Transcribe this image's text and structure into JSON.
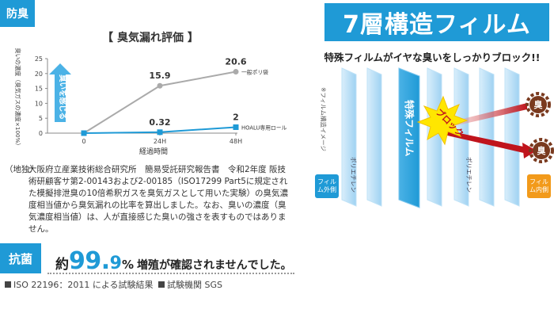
{
  "left": {
    "badge": "防臭",
    "chart": {
      "title": "【 臭気漏れ評価 】",
      "ylabel": "臭いの濃度（臭気ガスの濃度×100%）",
      "xlabel": "経過時間",
      "arrow_label": "臭いを感じる"
    },
    "note_prefix": "（地独）",
    "note_body": "大阪府立産業技術総合研究所　簡易受託研究報告書　令和2年度 阪技術研顧客サ第2-00143および2-00185（ISO17299 Part5に規定された模擬排泄臭の10倍希釈ガスを臭気ガスとして用いた実験）の臭気濃度相当値から臭気漏れの比率を算出しました。なお、臭いの濃度（臭気濃度相当値）は、人が直接感じた臭いの強さを表すものではありません。",
    "antibac_badge": "抗菌",
    "antibac_pre": "約",
    "antibac_big": "99.",
    "antibac_dec": "9",
    "antibac_pct": "%",
    "antibac_post": "増殖が確認されませんでした。",
    "foot1": "ISO 22196：2011 による試験結果",
    "foot2": "試験機関 SGS"
  },
  "right": {
    "title": "7層構造フィルム",
    "subtitle": "特殊フィルムがイヤな臭いをしっかりブロック!!",
    "side_note": "※フィルム構造イメージ",
    "special_film": "特殊フィルム",
    "block": "ブロック",
    "poly_left": "ポリエチレン",
    "poly_right": "ポリエチレン",
    "outer": "フィルム外側",
    "inner": "フィルム内側",
    "smell1": "臭",
    "smell2": "臭",
    "colors": {
      "brand": "#1f9ad6",
      "orange": "#f29a1a",
      "red": "#c0141c",
      "yellow": "#ffe600"
    }
  },
  "chart_data": {
    "type": "line",
    "title": "【 臭気漏れ評価 】",
    "xlabel": "経過時間",
    "ylabel": "臭いの濃度（臭気ガスの濃度×100%）",
    "categories": [
      "0",
      "24H",
      "48H"
    ],
    "ylim": [
      0,
      25
    ],
    "yticks": [
      "0",
      "5",
      "10",
      "15",
      "20",
      "25"
    ],
    "series": [
      {
        "name": "一般ポリ袋",
        "values": [
          0,
          15.9,
          20.6
        ],
        "labels": [
          "",
          "15.9",
          "20.6"
        ],
        "color": "#aaaaaa"
      },
      {
        "name": "HOALU専用ロール",
        "values": [
          0,
          0.32,
          2
        ],
        "labels": [
          "",
          "0.32",
          "2"
        ],
        "color": "#1f9ad6"
      }
    ]
  }
}
